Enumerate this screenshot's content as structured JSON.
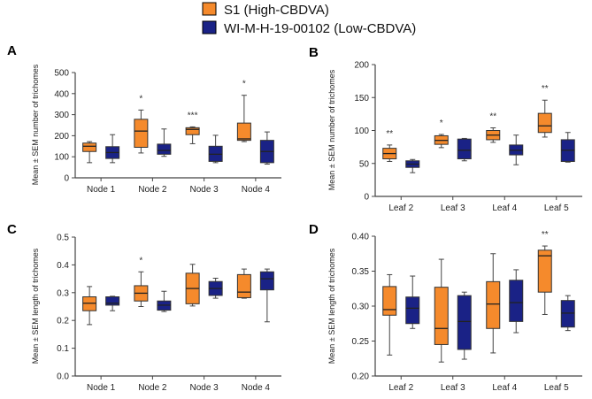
{
  "legend": [
    {
      "label": "S1 (High-CBDVA)",
      "color": "#F58A2C"
    },
    {
      "label": "WI-M-H-19-00102 (Low-CBDVA)",
      "color": "#1A2286"
    }
  ],
  "chart_data": [
    {
      "panel": "A",
      "type": "box",
      "ylabel": "Mean ± SEM number of trichomes",
      "ylim": [
        0,
        500
      ],
      "yticks": [
        0,
        100,
        200,
        300,
        400,
        500
      ],
      "ytick_decimals": 0,
      "categories": [
        "Node 1",
        "Node 2",
        "Node 3",
        "Node 4"
      ],
      "significance": [
        "",
        "*",
        "***",
        "*"
      ],
      "series": [
        {
          "name": "S1 (High-CBDVA)",
          "boxes": [
            {
              "min": 72,
              "q1": 125,
              "median": 150,
              "q3": 165,
              "max": 172
            },
            {
              "min": 118,
              "q1": 145,
              "median": 222,
              "q3": 278,
              "max": 322
            },
            {
              "min": 162,
              "q1": 205,
              "median": 230,
              "q3": 238,
              "max": 242
            },
            {
              "min": 172,
              "q1": 178,
              "median": 185,
              "q3": 260,
              "max": 392
            }
          ]
        },
        {
          "name": "WI-M-H-19-00102 (Low-CBDVA)",
          "boxes": [
            {
              "min": 72,
              "q1": 92,
              "median": 120,
              "q3": 148,
              "max": 205
            },
            {
              "min": 102,
              "q1": 112,
              "median": 130,
              "q3": 160,
              "max": 232
            },
            {
              "min": 72,
              "q1": 78,
              "median": 112,
              "q3": 150,
              "max": 202
            },
            {
              "min": 65,
              "q1": 72,
              "median": 125,
              "q3": 178,
              "max": 218
            }
          ]
        }
      ]
    },
    {
      "panel": "B",
      "type": "box",
      "ylabel": "Mean ± SEM number of trichomes",
      "ylim": [
        0,
        200
      ],
      "yticks": [
        0,
        50,
        100,
        150,
        200
      ],
      "ytick_decimals": 0,
      "categories": [
        "Leaf 2",
        "Leaf 3",
        "Leaf 4",
        "Leaf 5"
      ],
      "significance": [
        "**",
        "*",
        "**",
        "**"
      ],
      "series": [
        {
          "name": "S1 (High-CBDVA)",
          "boxes": [
            {
              "min": 53,
              "q1": 57,
              "median": 65,
              "q3": 73,
              "max": 78
            },
            {
              "min": 74,
              "q1": 79,
              "median": 85,
              "q3": 92,
              "max": 94
            },
            {
              "min": 82,
              "q1": 86,
              "median": 93,
              "q3": 100,
              "max": 104
            },
            {
              "min": 90,
              "q1": 97,
              "median": 107,
              "q3": 126,
              "max": 146
            }
          ]
        },
        {
          "name": "WI-M-H-19-00102 (Low-CBDVA)",
          "boxes": [
            {
              "min": 36,
              "q1": 44,
              "median": 49,
              "q3": 54,
              "max": 56
            },
            {
              "min": 54,
              "q1": 57,
              "median": 70,
              "q3": 87,
              "max": 88
            },
            {
              "min": 48,
              "q1": 63,
              "median": 70,
              "q3": 78,
              "max": 93
            },
            {
              "min": 52,
              "q1": 53,
              "median": 70,
              "q3": 86,
              "max": 97
            }
          ]
        }
      ]
    },
    {
      "panel": "C",
      "type": "box",
      "ylabel": "Mean ± SEM length of trichomes",
      "ylim": [
        0,
        0.5
      ],
      "yticks": [
        0,
        0.1,
        0.2,
        0.3,
        0.4,
        0.5
      ],
      "ytick_decimals": 1,
      "categories": [
        "Node 1",
        "Node 2",
        "Node 3",
        "Node 4"
      ],
      "significance": [
        "",
        "*",
        "",
        ""
      ],
      "series": [
        {
          "name": "S1 (High-CBDVA)",
          "boxes": [
            {
              "min": 0.185,
              "q1": 0.235,
              "median": 0.262,
              "q3": 0.285,
              "max": 0.322
            },
            {
              "min": 0.25,
              "q1": 0.27,
              "median": 0.298,
              "q3": 0.325,
              "max": 0.375
            },
            {
              "min": 0.252,
              "q1": 0.26,
              "median": 0.315,
              "q3": 0.37,
              "max": 0.402
            },
            {
              "min": 0.28,
              "q1": 0.282,
              "median": 0.302,
              "q3": 0.365,
              "max": 0.385
            }
          ]
        },
        {
          "name": "WI-M-H-19-00102 (Low-CBDVA)",
          "boxes": [
            {
              "min": 0.235,
              "q1": 0.255,
              "median": 0.262,
              "q3": 0.285,
              "max": 0.287
            },
            {
              "min": 0.232,
              "q1": 0.237,
              "median": 0.255,
              "q3": 0.27,
              "max": 0.305
            },
            {
              "min": 0.28,
              "q1": 0.29,
              "median": 0.315,
              "q3": 0.34,
              "max": 0.352
            },
            {
              "min": 0.195,
              "q1": 0.31,
              "median": 0.35,
              "q3": 0.375,
              "max": 0.385
            }
          ]
        }
      ]
    },
    {
      "panel": "D",
      "type": "box",
      "ylabel": "Mean ± SEM length of trichomes",
      "ylim": [
        0.2,
        0.4
      ],
      "yticks": [
        0.2,
        0.25,
        0.3,
        0.35,
        0.4
      ],
      "ytick_decimals": 2,
      "categories": [
        "Leaf 2",
        "Leaf 3",
        "Leaf 4",
        "Leaf 5"
      ],
      "significance": [
        "",
        "",
        "",
        "**"
      ],
      "series": [
        {
          "name": "S1 (High-CBDVA)",
          "boxes": [
            {
              "min": 0.23,
              "q1": 0.287,
              "median": 0.295,
              "q3": 0.328,
              "max": 0.345
            },
            {
              "min": 0.22,
              "q1": 0.245,
              "median": 0.268,
              "q3": 0.327,
              "max": 0.367
            },
            {
              "min": 0.233,
              "q1": 0.268,
              "median": 0.303,
              "q3": 0.335,
              "max": 0.375
            },
            {
              "min": 0.288,
              "q1": 0.32,
              "median": 0.372,
              "q3": 0.38,
              "max": 0.386
            }
          ]
        },
        {
          "name": "WI-M-H-19-00102 (Low-CBDVA)",
          "boxes": [
            {
              "min": 0.268,
              "q1": 0.275,
              "median": 0.297,
              "q3": 0.313,
              "max": 0.343
            },
            {
              "min": 0.224,
              "q1": 0.238,
              "median": 0.278,
              "q3": 0.315,
              "max": 0.32
            },
            {
              "min": 0.262,
              "q1": 0.278,
              "median": 0.305,
              "q3": 0.337,
              "max": 0.352
            },
            {
              "min": 0.265,
              "q1": 0.27,
              "median": 0.29,
              "q3": 0.308,
              "max": 0.315
            }
          ]
        }
      ]
    }
  ]
}
